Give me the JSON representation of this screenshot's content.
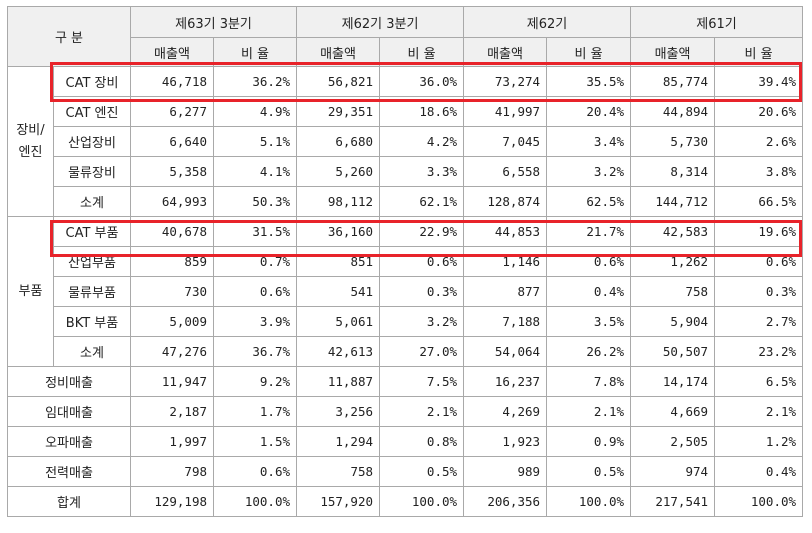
{
  "header": {
    "division_label": "구 분",
    "periods": [
      "제63기 3분기",
      "제62기 3분기",
      "제62기",
      "제61기"
    ],
    "sub_sales": "매출액",
    "sub_ratio": "비 율"
  },
  "groups": {
    "equipment_line1": "장비/",
    "equipment_line2": "엔진",
    "parts": "부품"
  },
  "rows": [
    {
      "label": "CAT 장비",
      "vals": [
        "46,718",
        "36.2%",
        "56,821",
        "36.0%",
        "73,274",
        "35.5%",
        "85,774",
        "39.4%"
      ]
    },
    {
      "label": "CAT 엔진",
      "vals": [
        "6,277",
        "4.9%",
        "29,351",
        "18.6%",
        "41,997",
        "20.4%",
        "44,894",
        "20.6%"
      ]
    },
    {
      "label": "산업장비",
      "vals": [
        "6,640",
        "5.1%",
        "6,680",
        "4.2%",
        "7,045",
        "3.4%",
        "5,730",
        "2.6%"
      ]
    },
    {
      "label": "물류장비",
      "vals": [
        "5,358",
        "4.1%",
        "5,260",
        "3.3%",
        "6,558",
        "3.2%",
        "8,314",
        "3.8%"
      ]
    },
    {
      "label": "소계",
      "vals": [
        "64,993",
        "50.3%",
        "98,112",
        "62.1%",
        "128,874",
        "62.5%",
        "144,712",
        "66.5%"
      ]
    },
    {
      "label": "CAT 부품",
      "vals": [
        "40,678",
        "31.5%",
        "36,160",
        "22.9%",
        "44,853",
        "21.7%",
        "42,583",
        "19.6%"
      ]
    },
    {
      "label": "산업부품",
      "vals": [
        "859",
        "0.7%",
        "851",
        "0.6%",
        "1,146",
        "0.6%",
        "1,262",
        "0.6%"
      ]
    },
    {
      "label": "물류부품",
      "vals": [
        "730",
        "0.6%",
        "541",
        "0.3%",
        "877",
        "0.4%",
        "758",
        "0.3%"
      ]
    },
    {
      "label": "BKT 부품",
      "vals": [
        "5,009",
        "3.9%",
        "5,061",
        "3.2%",
        "7,188",
        "3.5%",
        "5,904",
        "2.7%"
      ]
    },
    {
      "label": "소계",
      "vals": [
        "47,276",
        "36.7%",
        "42,613",
        "27.0%",
        "54,064",
        "26.2%",
        "50,507",
        "23.2%"
      ]
    },
    {
      "label": "정비매출",
      "vals": [
        "11,947",
        "9.2%",
        "11,887",
        "7.5%",
        "16,237",
        "7.8%",
        "14,174",
        "6.5%"
      ]
    },
    {
      "label": "임대매출",
      "vals": [
        "2,187",
        "1.7%",
        "3,256",
        "2.1%",
        "4,269",
        "2.1%",
        "4,669",
        "2.1%"
      ]
    },
    {
      "label": "오파매출",
      "vals": [
        "1,997",
        "1.5%",
        "1,294",
        "0.8%",
        "1,923",
        "0.9%",
        "2,505",
        "1.2%"
      ]
    },
    {
      "label": "전력매출",
      "vals": [
        "798",
        "0.6%",
        "758",
        "0.5%",
        "989",
        "0.5%",
        "974",
        "0.4%"
      ]
    },
    {
      "label": "합계",
      "vals": [
        "129,198",
        "100.0%",
        "157,920",
        "100.0%",
        "206,356",
        "100.0%",
        "217,541",
        "100.0%"
      ]
    }
  ],
  "colors": {
    "highlight": "#e8232a",
    "header_bg": "#f0f0f0",
    "border": "#a9a9a9"
  }
}
